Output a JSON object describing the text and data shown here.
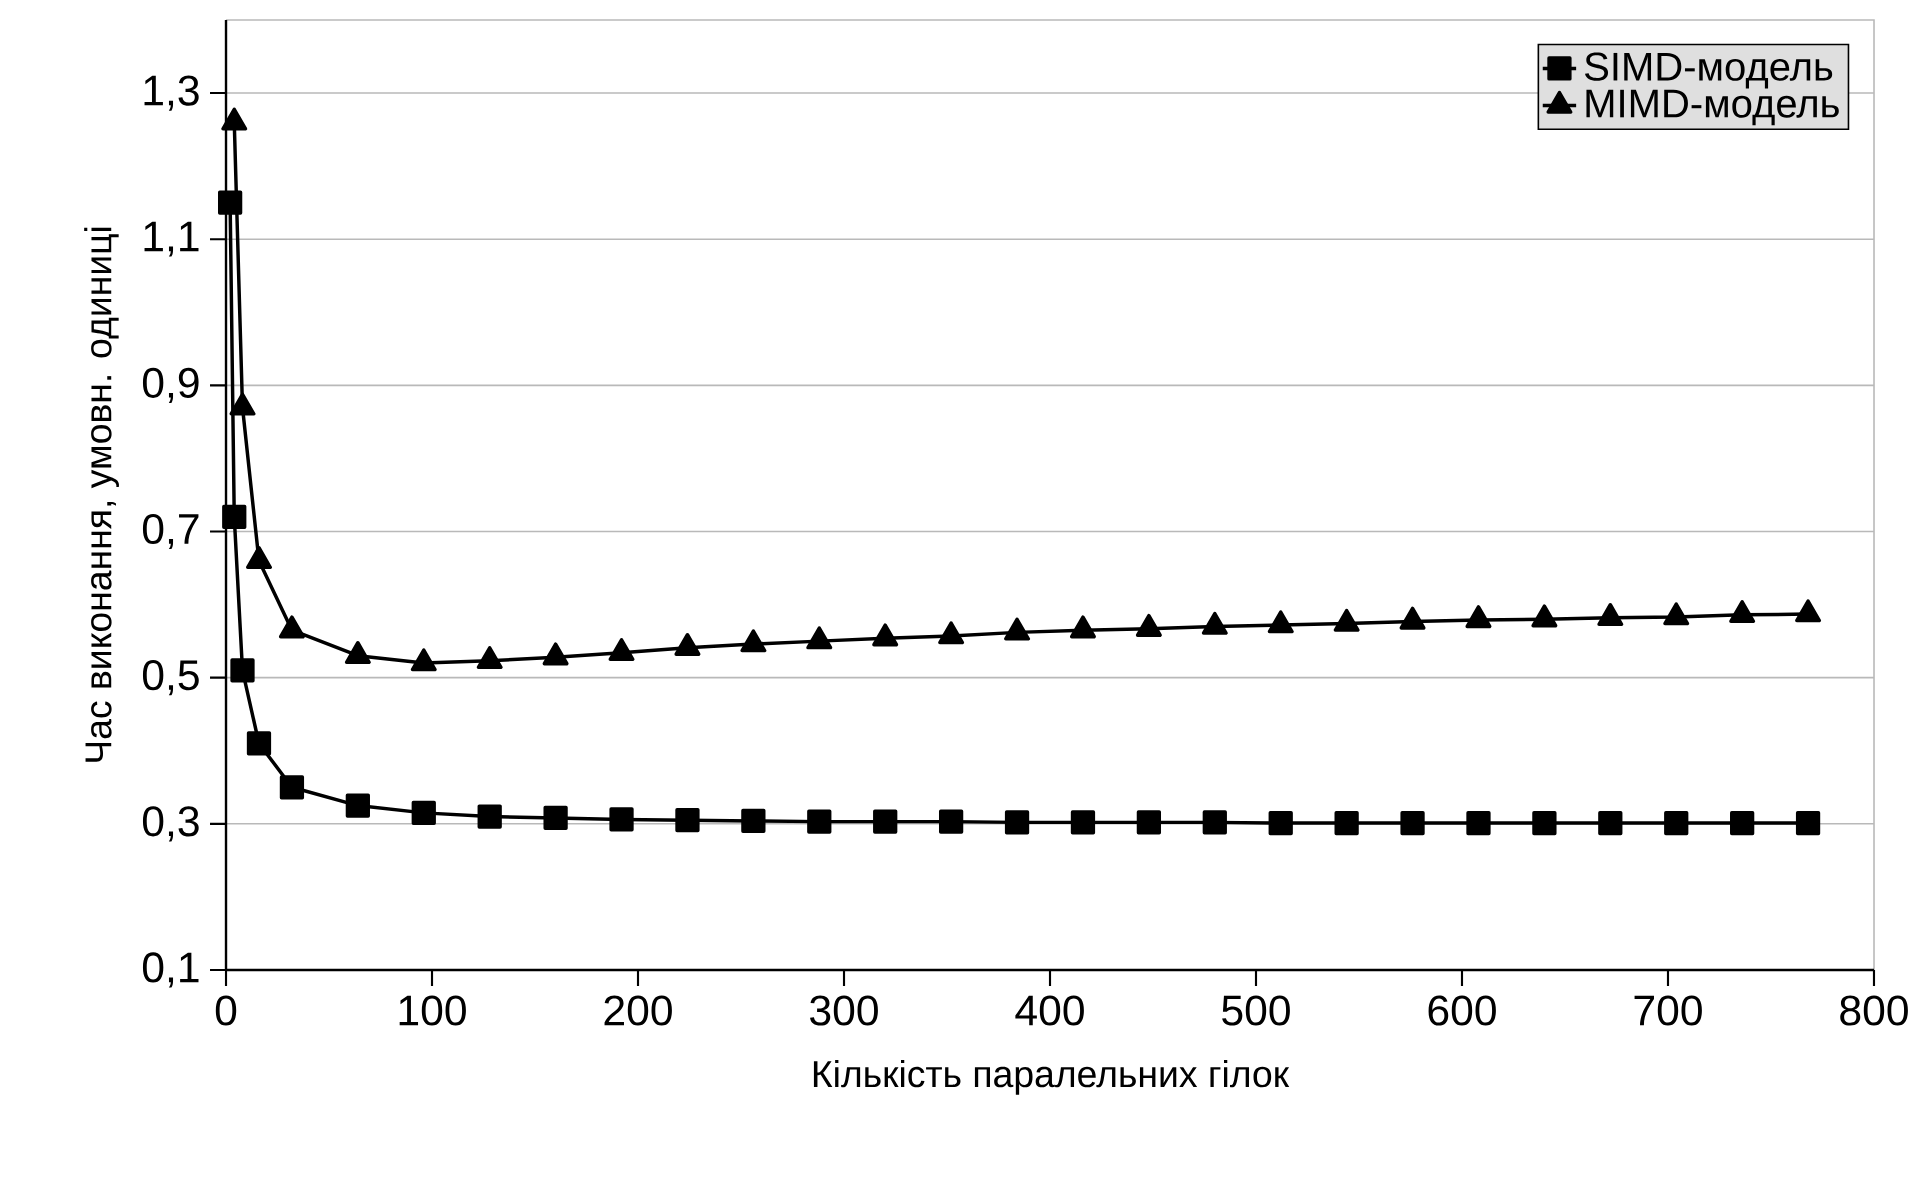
{
  "chart_data": {
    "type": "line",
    "xlabel": "Кількість паралельних гілок",
    "ylabel": "Час виконання, умовн. одиниці",
    "xlim": [
      0,
      800
    ],
    "xticks": [
      0,
      100,
      200,
      300,
      400,
      500,
      600,
      700,
      800
    ],
    "ylim": [
      0.1,
      1.4
    ],
    "yticks": [
      {
        "value": 0.1,
        "label": "0,1"
      },
      {
        "value": 0.3,
        "label": "0,3"
      },
      {
        "value": 0.5,
        "label": "0,5"
      },
      {
        "value": 0.7,
        "label": "0,7"
      },
      {
        "value": 0.9,
        "label": "0,9"
      },
      {
        "value": 1.1,
        "label": "1,1"
      },
      {
        "value": 1.3,
        "label": "1,3"
      }
    ],
    "grid": "y",
    "legend": "top right",
    "line_style": "solid",
    "series": [
      {
        "name": "SIMD-модель",
        "color": "#000000",
        "marker": "square",
        "x": [
          2,
          4,
          8,
          16,
          32,
          64,
          96,
          128,
          160,
          192,
          224,
          256,
          288,
          320,
          352,
          384,
          416,
          448,
          480,
          512,
          544,
          576,
          608,
          640,
          672,
          704,
          736,
          768
        ],
        "values": [
          1.15,
          0.72,
          0.51,
          0.41,
          0.35,
          0.325,
          0.315,
          0.31,
          0.308,
          0.306,
          0.305,
          0.304,
          0.303,
          0.303,
          0.303,
          0.302,
          0.302,
          0.302,
          0.302,
          0.301,
          0.301,
          0.301,
          0.301,
          0.301,
          0.301,
          0.301,
          0.301,
          0.301
        ]
      },
      {
        "name": "MIMD-модель",
        "color": "#000000",
        "marker": "triangle",
        "x": [
          4,
          8,
          16,
          32,
          64,
          96,
          128,
          160,
          192,
          224,
          256,
          288,
          320,
          352,
          384,
          416,
          448,
          480,
          512,
          544,
          576,
          608,
          640,
          672,
          704,
          736,
          768
        ],
        "values": [
          1.26,
          0.87,
          0.66,
          0.565,
          0.53,
          0.52,
          0.523,
          0.528,
          0.534,
          0.541,
          0.546,
          0.55,
          0.554,
          0.557,
          0.562,
          0.565,
          0.567,
          0.57,
          0.572,
          0.574,
          0.577,
          0.579,
          0.58,
          0.582,
          0.583,
          0.586,
          0.587
        ]
      }
    ]
  }
}
